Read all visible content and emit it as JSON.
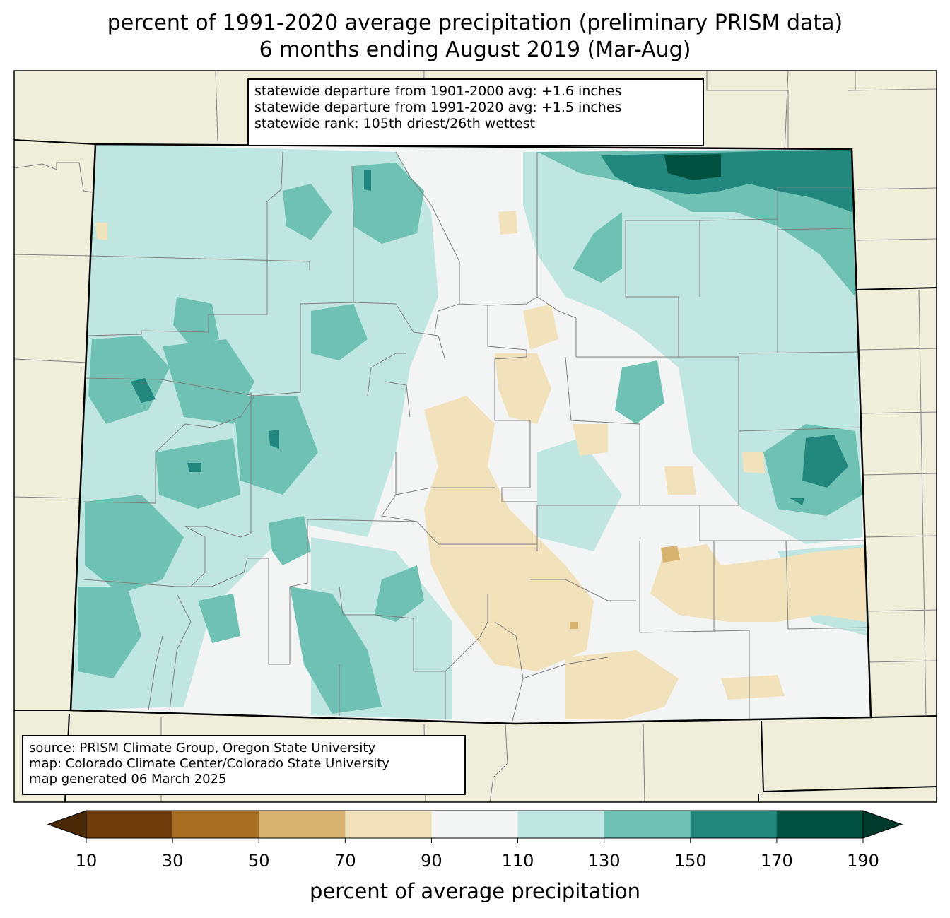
{
  "title_line1": "percent of 1991-2020 average precipitation (preliminary PRISM data)",
  "title_line2": "6 months ending August 2019 (Mar-Aug)",
  "stats": [
    "statewide departure from 1901-2000 avg: +1.6 inches",
    "statewide departure from 1991-2020 avg: +1.5 inches",
    "statewide rank: 105th driest/26th wettest"
  ],
  "source": [
    "source: PRISM Climate Group, Oregon State University",
    "map: Colorado Climate Center/Colorado State University",
    "map generated 06 March 2025"
  ],
  "colorbar": {
    "label": "percent of average precipitation",
    "ticks": [
      "10",
      "30",
      "50",
      "70",
      "90",
      "110",
      "130",
      "150",
      "170",
      "190"
    ],
    "colors": [
      "#6e3c0a",
      "#a86f23",
      "#d8b36f",
      "#f2e2bb",
      "#f3f5f4",
      "#bfe6e0",
      "#6fc1b3",
      "#22877c",
      "#00503f"
    ],
    "under_color": "#4a2a06",
    "over_color": "#003a2c"
  },
  "map_colors": {
    "land_outside": "#efeedb",
    "county_lines": "#808080",
    "state_lines": "#000000"
  }
}
